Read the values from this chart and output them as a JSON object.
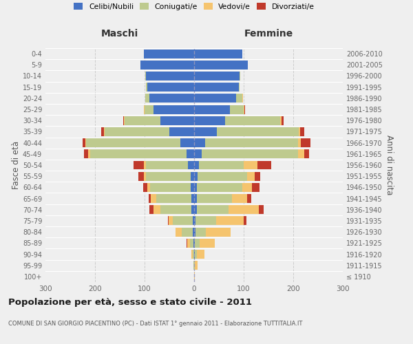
{
  "age_groups": [
    "100+",
    "95-99",
    "90-94",
    "85-89",
    "80-84",
    "75-79",
    "70-74",
    "65-69",
    "60-64",
    "55-59",
    "50-54",
    "45-49",
    "40-44",
    "35-39",
    "30-34",
    "25-29",
    "20-24",
    "15-19",
    "10-14",
    "5-9",
    "0-4"
  ],
  "birth_years": [
    "≤ 1910",
    "1911-1915",
    "1916-1920",
    "1921-1925",
    "1926-1930",
    "1931-1935",
    "1936-1940",
    "1941-1945",
    "1946-1950",
    "1951-1955",
    "1956-1960",
    "1961-1965",
    "1966-1970",
    "1971-1975",
    "1976-1980",
    "1981-1985",
    "1986-1990",
    "1991-1995",
    "1996-2000",
    "2001-2005",
    "2006-2010"
  ],
  "maschi_celibi": [
    0,
    0,
    0,
    1,
    3,
    3,
    6,
    5,
    7,
    7,
    12,
    15,
    28,
    50,
    68,
    82,
    90,
    95,
    97,
    108,
    102
  ],
  "maschi_coniugati": [
    0,
    1,
    3,
    7,
    22,
    40,
    62,
    72,
    82,
    90,
    85,
    195,
    190,
    130,
    72,
    18,
    8,
    2,
    1,
    0,
    0
  ],
  "maschi_vedovi": [
    0,
    1,
    2,
    6,
    12,
    8,
    14,
    10,
    6,
    5,
    5,
    4,
    2,
    2,
    1,
    1,
    0,
    0,
    0,
    0,
    0
  ],
  "maschi_divorziati": [
    0,
    0,
    0,
    1,
    1,
    2,
    8,
    5,
    8,
    10,
    20,
    8,
    5,
    5,
    2,
    1,
    1,
    0,
    0,
    0,
    0
  ],
  "femmine_nubili": [
    0,
    0,
    1,
    1,
    3,
    3,
    5,
    5,
    5,
    7,
    10,
    15,
    22,
    46,
    62,
    72,
    85,
    90,
    92,
    108,
    97
  ],
  "femmine_coniugate": [
    0,
    2,
    5,
    10,
    20,
    42,
    65,
    72,
    92,
    100,
    90,
    195,
    188,
    165,
    112,
    28,
    12,
    2,
    1,
    0,
    0
  ],
  "femmine_vedove": [
    1,
    5,
    15,
    30,
    50,
    55,
    60,
    30,
    20,
    15,
    28,
    12,
    5,
    3,
    2,
    1,
    1,
    0,
    0,
    0,
    0
  ],
  "femmine_divorziate": [
    0,
    0,
    0,
    1,
    1,
    5,
    10,
    8,
    15,
    12,
    28,
    10,
    20,
    8,
    5,
    2,
    1,
    0,
    0,
    0,
    0
  ],
  "colors": {
    "celibi": "#4472C4",
    "coniugati": "#BECA8E",
    "vedovi": "#F5C46E",
    "divorziati": "#C0392B"
  },
  "xlim": 300,
  "title": "Popolazione per età, sesso e stato civile - 2011",
  "subtitle": "COMUNE DI SAN GIORGIO PIACENTINO (PC) - Dati ISTAT 1° gennaio 2011 - Elaborazione TUTTITALIA.IT",
  "ylabel_left": "Fasce di età",
  "ylabel_right": "Anni di nascita",
  "label_maschi": "Maschi",
  "label_femmine": "Femmine",
  "bg_color": "#efefef",
  "legend_labels": [
    "Celibi/Nubili",
    "Coniugati/e",
    "Vedovi/e",
    "Divorziati/e"
  ]
}
